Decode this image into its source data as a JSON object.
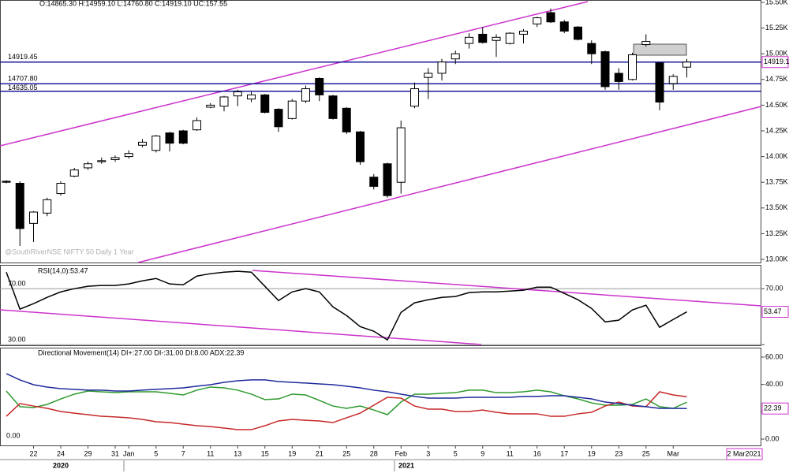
{
  "chart_data": [
    {
      "type": "candlestick",
      "ohlc_text": "O:14865.30  H:14959.10  L:14760.80  C:14919.10  UC:157.55",
      "watermark": "@SouthRiverNSE NIFTY 50 Daily 1 Year",
      "categories": [
        null,
        null,
        "22",
        null,
        "24",
        null,
        "29",
        null,
        "31",
        "Jan",
        null,
        "5",
        null,
        "7",
        null,
        "11",
        null,
        "13",
        null,
        "15",
        null,
        "19",
        null,
        "21",
        null,
        "25",
        null,
        "28",
        null,
        "Feb",
        null,
        "3",
        null,
        "5",
        null,
        "9",
        null,
        "11",
        null,
        "16",
        null,
        "17",
        null,
        "19",
        null,
        "23",
        null,
        "25",
        null,
        "Mar",
        null
      ],
      "year_labels": [
        "2020",
        "2021"
      ],
      "open": [
        13760,
        13740,
        13350,
        13450,
        13640,
        13810,
        13890,
        13950,
        13970,
        14000,
        14110,
        14060,
        14230,
        14250,
        14260,
        14480,
        14490,
        14590,
        14560,
        14600,
        14460,
        14370,
        14540,
        14760,
        14590,
        14470,
        14240,
        13800,
        13930,
        13750,
        14490,
        14770,
        14810,
        14950,
        15100,
        15190,
        15130,
        15100,
        15190,
        15290,
        15400,
        15310,
        15260,
        15100,
        15020,
        14810,
        14750,
        15090,
        14910,
        14710,
        14870
      ],
      "high": [
        13770,
        13760,
        13470,
        13600,
        13760,
        13890,
        13950,
        13990,
        14010,
        14060,
        14170,
        14210,
        14240,
        14260,
        14380,
        14520,
        14590,
        14650,
        14630,
        14610,
        14470,
        14560,
        14690,
        14770,
        14600,
        14480,
        14250,
        13830,
        13940,
        14350,
        14720,
        14860,
        14950,
        15030,
        15200,
        15260,
        15190,
        15210,
        15240,
        15360,
        15440,
        15330,
        15270,
        15130,
        15030,
        14860,
        15010,
        15190,
        14920,
        14800,
        14950
      ],
      "low": [
        13740,
        13130,
        13170,
        13420,
        13620,
        13800,
        13870,
        13930,
        13950,
        13980,
        14090,
        14040,
        14050,
        14120,
        14250,
        14470,
        14440,
        14490,
        14530,
        14420,
        14240,
        14360,
        14520,
        14540,
        14360,
        14220,
        13920,
        13680,
        13600,
        13640,
        14470,
        14560,
        14740,
        14900,
        15050,
        15100,
        14970,
        15090,
        15100,
        15260,
        15300,
        15200,
        15130,
        14900,
        14650,
        14650,
        14740,
        15070,
        14450,
        14650,
        14770
      ],
      "close": [
        13750,
        13300,
        13460,
        13580,
        13740,
        13870,
        13930,
        13960,
        13990,
        14030,
        14140,
        14200,
        14130,
        14130,
        14350,
        14500,
        14580,
        14630,
        14600,
        14430,
        14290,
        14540,
        14660,
        14600,
        14370,
        14240,
        13950,
        13710,
        13620,
        14280,
        14660,
        14810,
        14920,
        15000,
        15160,
        15110,
        15160,
        15200,
        15220,
        15350,
        15310,
        15220,
        15140,
        15000,
        14680,
        14730,
        14990,
        15120,
        14530,
        14780,
        14919.1
      ],
      "up_color": "#ffffff",
      "down_color": "#000000",
      "hlines": [
        {
          "value": 14919.45,
          "label": "14919.45"
        },
        {
          "value": 14707.8,
          "label": "14707.80"
        },
        {
          "value": 14635.05,
          "label": "14635.05"
        }
      ],
      "hline_color": "#1a1a9c",
      "trend_color": "#cc33cc",
      "ylim": [
        13000,
        15500
      ],
      "yticks": [
        {
          "value": 13000,
          "label": "13.00K"
        },
        {
          "value": 13250,
          "label": "13.25K"
        },
        {
          "value": 13500,
          "label": "13.50K"
        },
        {
          "value": 13750,
          "label": "13.75K"
        },
        {
          "value": 14000,
          "label": "14.00K"
        },
        {
          "value": 14250,
          "label": "14.25K"
        },
        {
          "value": 14500,
          "label": "14.50K"
        },
        {
          "value": 14750,
          "label": "14.75K"
        },
        {
          "value": 15000,
          "label": "15.00K"
        },
        {
          "value": 15250,
          "label": "15.25K"
        },
        {
          "value": 15500,
          "label": "15.50K"
        }
      ]
    },
    {
      "type": "line",
      "title": "RSI(14,0):53.47",
      "color": "#000000",
      "values": [
        81.8,
        55.4,
        59.3,
        63.8,
        67.7,
        70.0,
        71.7,
        72.3,
        72.3,
        73.4,
        75.6,
        77.3,
        73.4,
        72.8,
        79.0,
        80.7,
        81.8,
        82.4,
        81.8,
        71.7,
        61.5,
        67.7,
        70.0,
        67.7,
        57.0,
        50.8,
        42.9,
        39.6,
        33.4,
        53.1,
        59.9,
        62.1,
        63.8,
        64.4,
        67.2,
        67.7,
        67.7,
        68.3,
        68.9,
        71.1,
        71.1,
        66.6,
        62.1,
        55.9,
        46.3,
        47.5,
        54.8,
        58.2,
        42.4,
        48.0,
        53.47
      ],
      "ylim": [
        29,
        87
      ],
      "yticks": [
        {
          "value": 70,
          "label": "70.00"
        },
        {
          "value": 30,
          "label": "30.00"
        }
      ]
    },
    {
      "type": "line",
      "title": "Directional Movement(14)  DI+:27.00  DI-:31.00  DI:8.00  ADX:22.39",
      "series": [
        {
          "color": "#2e9a2e",
          "values": [
            35.2,
            23.7,
            23.1,
            25.4,
            29.4,
            32.9,
            35.2,
            34.6,
            34.0,
            34.6,
            34.6,
            34.6,
            33.5,
            32.3,
            35.8,
            38.1,
            37.5,
            35.8,
            32.9,
            28.9,
            29.4,
            32.9,
            32.3,
            28.3,
            24.2,
            22.5,
            24.2,
            21.3,
            17.9,
            27.1,
            32.9,
            32.9,
            33.5,
            34.0,
            35.8,
            35.8,
            34.0,
            34.0,
            34.6,
            35.8,
            34.6,
            31.7,
            29.4,
            26.5,
            24.8,
            24.8,
            25.4,
            29.4,
            23.7,
            22.5,
            27.0
          ]
        },
        {
          "color": "#c62828",
          "values": [
            16.7,
            26.0,
            24.2,
            22.5,
            20.2,
            19.0,
            17.9,
            16.7,
            16.2,
            15.6,
            14.4,
            12.7,
            12.1,
            11.0,
            9.8,
            9.2,
            8.1,
            6.9,
            6.9,
            9.8,
            13.3,
            14.4,
            13.8,
            13.3,
            12.1,
            15.6,
            19.0,
            24.8,
            30.6,
            30.0,
            24.2,
            21.9,
            21.9,
            20.2,
            20.2,
            21.3,
            19.6,
            18.5,
            18.5,
            18.5,
            16.7,
            16.7,
            18.5,
            19.6,
            24.2,
            27.1,
            24.2,
            23.7,
            34.6,
            32.3,
            31.0
          ]
        },
        {
          "color": "#1f2a9c",
          "values": [
            47.9,
            43.3,
            39.8,
            38.1,
            36.9,
            36.4,
            35.8,
            35.8,
            35.2,
            35.2,
            35.8,
            36.4,
            36.9,
            37.5,
            38.7,
            39.8,
            41.5,
            42.7,
            43.3,
            43.3,
            42.1,
            41.5,
            41.0,
            40.4,
            39.8,
            38.7,
            37.5,
            35.8,
            34.6,
            32.9,
            31.2,
            30.0,
            30.0,
            30.0,
            30.6,
            30.6,
            30.6,
            30.6,
            31.2,
            31.2,
            31.7,
            31.7,
            30.6,
            29.4,
            27.1,
            26.0,
            24.8,
            23.7,
            22.5,
            22.5,
            22.39
          ]
        }
      ],
      "ylim": [
        -4.6,
        66.9
      ],
      "yticks": [
        {
          "value": 0,
          "label": "0.00"
        },
        {
          "value": 20,
          "label": "20.00"
        },
        {
          "value": 40,
          "label": "40.00"
        },
        {
          "value": 60,
          "label": "60.00"
        }
      ],
      "date_badge": "2 Mar2021"
    }
  ]
}
